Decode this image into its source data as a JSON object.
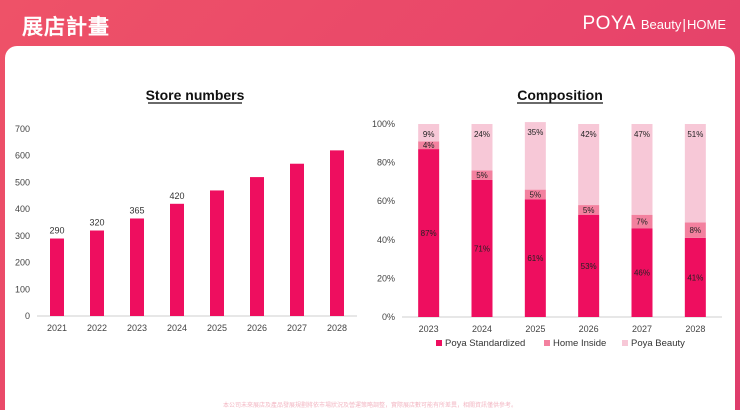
{
  "header": {
    "title": "展店計畫",
    "brand_main": "POYA",
    "brand_beauty": "Beauty",
    "brand_sep": "|",
    "brand_home": "HOME"
  },
  "colors": {
    "header_bg": "#e8456a",
    "standardized": "#ee0e5f",
    "home_inside": "#f3819f",
    "beauty": "#f7c8d7"
  },
  "footnote": "本公司未來展店及產品發展規劃將依市場狀況及營運策略調整，實際展店數可能有所差異，相關資訊僅供參考。",
  "chart_data": [
    {
      "type": "bar",
      "title": "Store numbers",
      "categories": [
        "2021",
        "2022",
        "2023",
        "2024",
        "2025",
        "2026",
        "2027",
        "2028"
      ],
      "values": [
        290,
        320,
        365,
        420,
        470,
        520,
        570,
        620
      ],
      "data_labels": [
        "290",
        "320",
        "365",
        "420",
        "",
        "",
        "",
        ""
      ],
      "ylim": [
        0,
        700
      ],
      "yticks": [
        0,
        100,
        200,
        300,
        400,
        500,
        600,
        700
      ],
      "xlabel": "",
      "ylabel": "",
      "grid": false
    },
    {
      "type": "bar",
      "stacked": true,
      "title": "Composition",
      "categories": [
        "2023",
        "2024",
        "2025",
        "2026",
        "2027",
        "2028"
      ],
      "series": [
        {
          "name": "Poya Standardized",
          "values": [
            87,
            71,
            61,
            53,
            46,
            41
          ],
          "labels": [
            "87%",
            "71%",
            "61%",
            "53%",
            "46%",
            "41%"
          ]
        },
        {
          "name": "Home Inside",
          "values": [
            4,
            5,
            5,
            5,
            7,
            8
          ],
          "labels": [
            "4%",
            "5%",
            "5%",
            "5%",
            "7%",
            "8%"
          ]
        },
        {
          "name": "Poya Beauty",
          "values": [
            9,
            24,
            35,
            42,
            47,
            51
          ],
          "labels": [
            "9%",
            "24%",
            "35%",
            "42%",
            "47%",
            "51%"
          ]
        }
      ],
      "ylim": [
        0,
        100
      ],
      "ytick_labels": [
        "0%",
        "20%",
        "40%",
        "60%",
        "80%",
        "100%"
      ],
      "legend": "bottom",
      "grid": false
    }
  ]
}
